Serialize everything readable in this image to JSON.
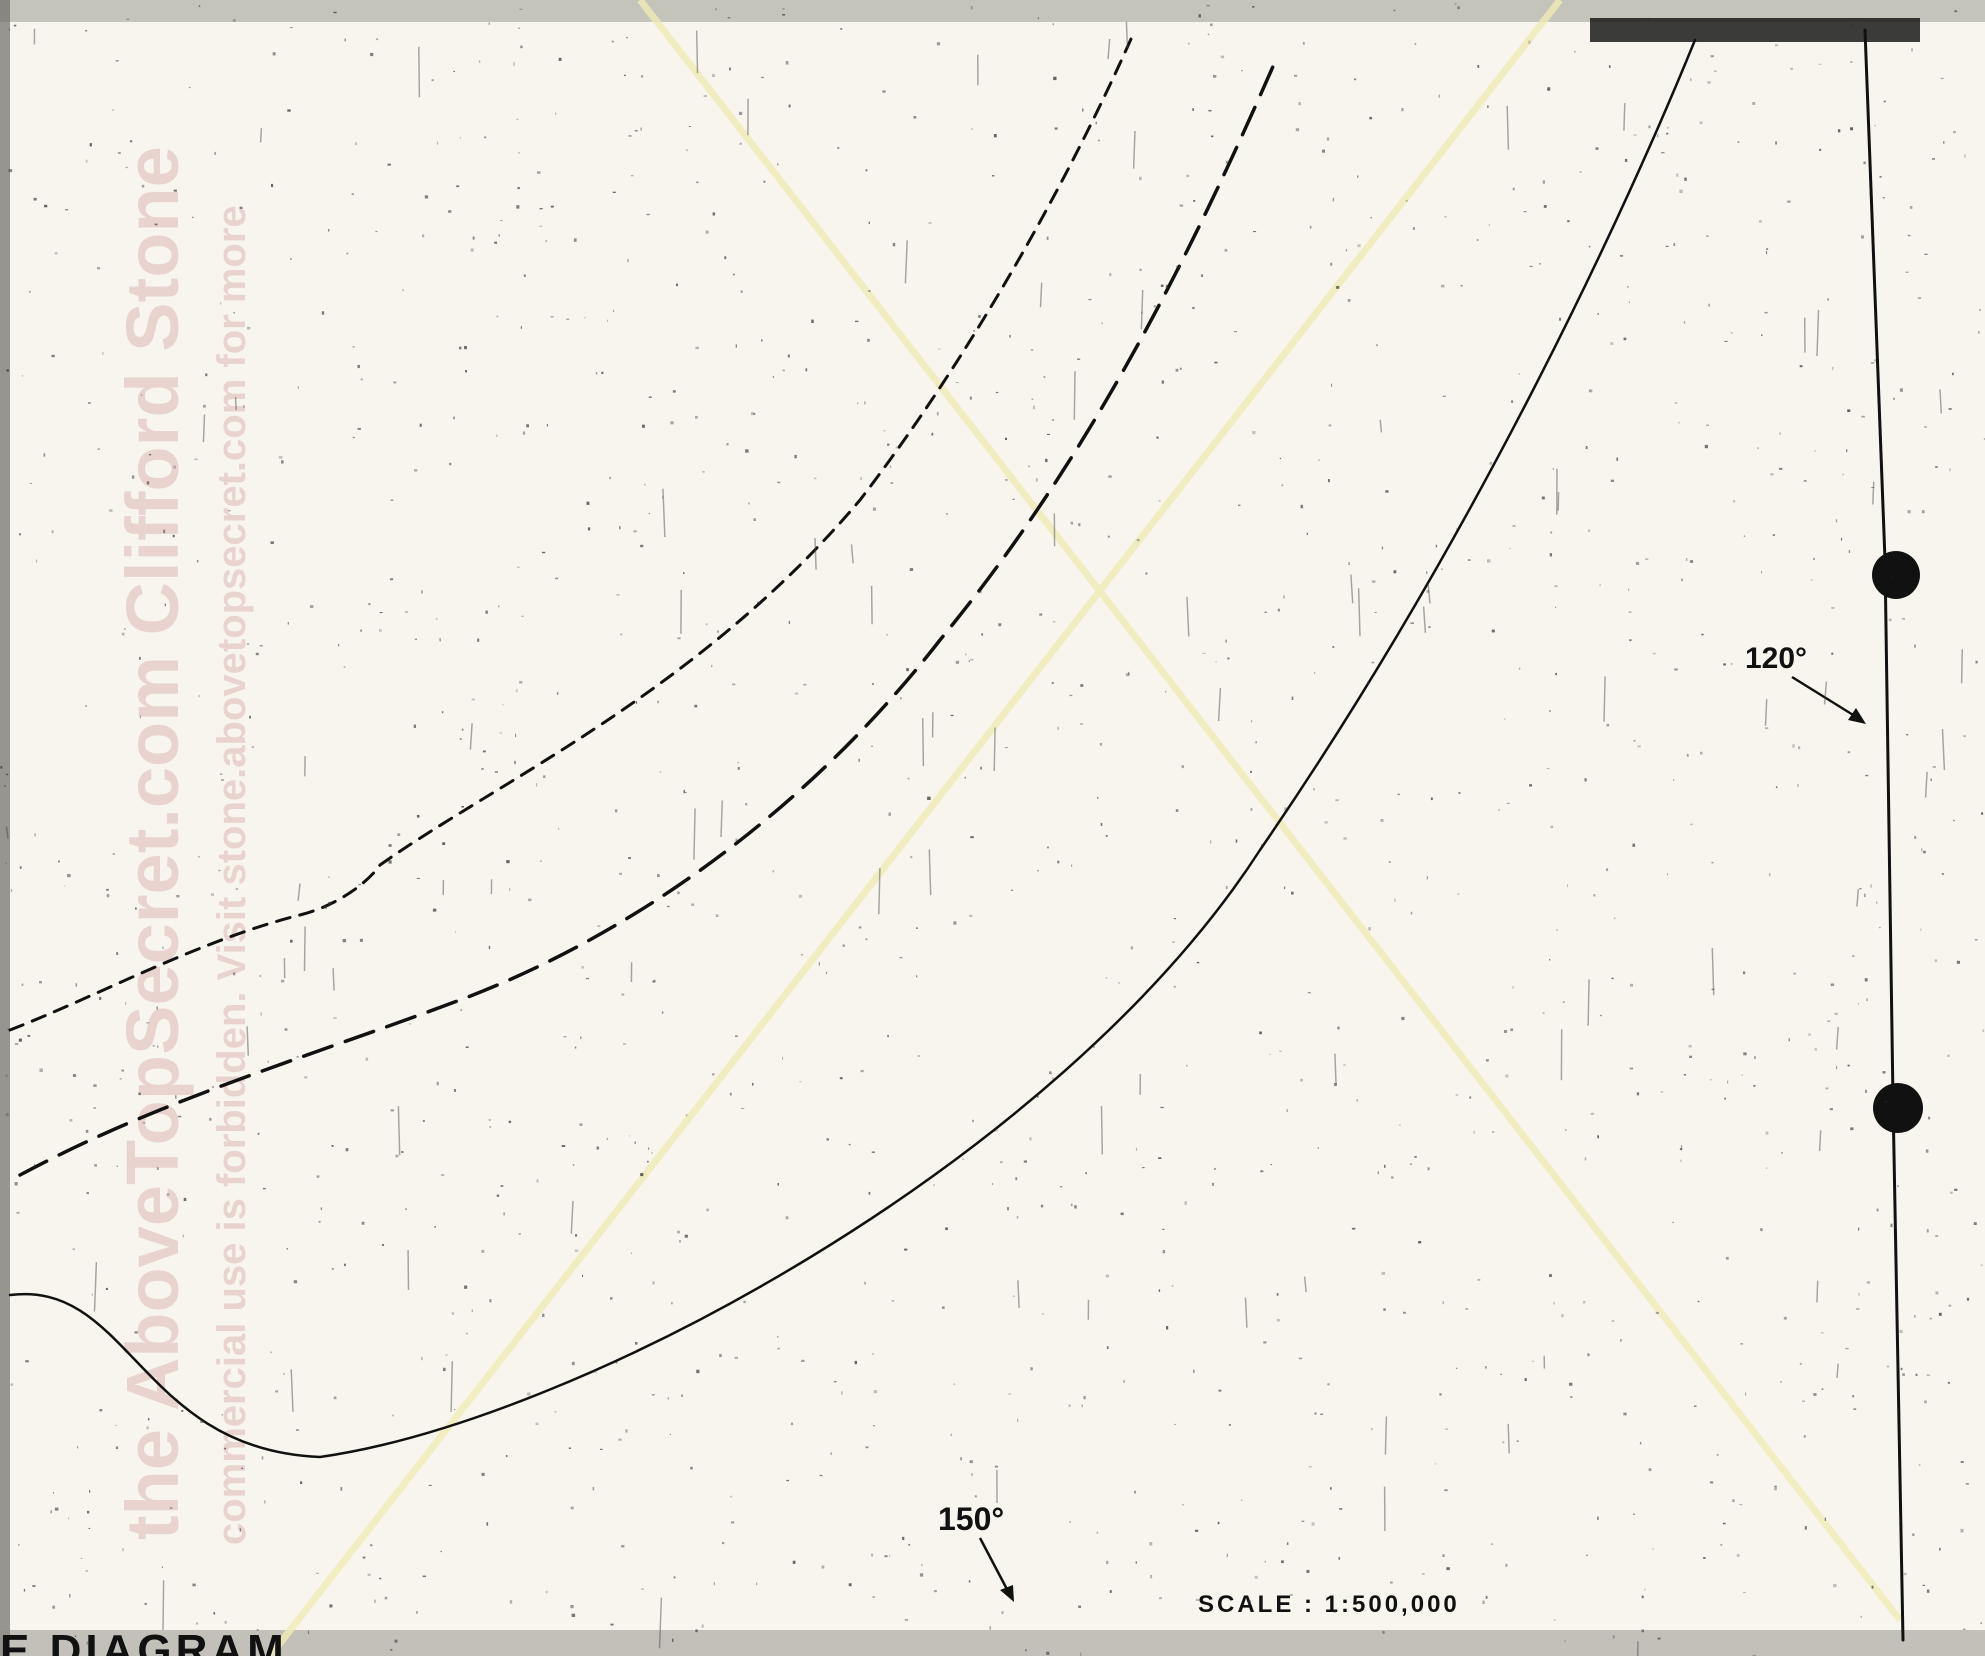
{
  "labels": {
    "deg_120": "120°",
    "deg_150": "150°",
    "scale": "SCALE : 1:500,000",
    "title_fragment": "E DIAGRAM"
  },
  "watermark": {
    "line1": "the AboveTopSecret.com Clifford Stone",
    "line2": "commercial use is forbidden. Visit stone.abovetopsecret.com for more"
  },
  "colors": {
    "ink": "#111111",
    "paper": "#f7f5ee",
    "watermark": "#cd9696",
    "guide": "#f3eebc"
  }
}
